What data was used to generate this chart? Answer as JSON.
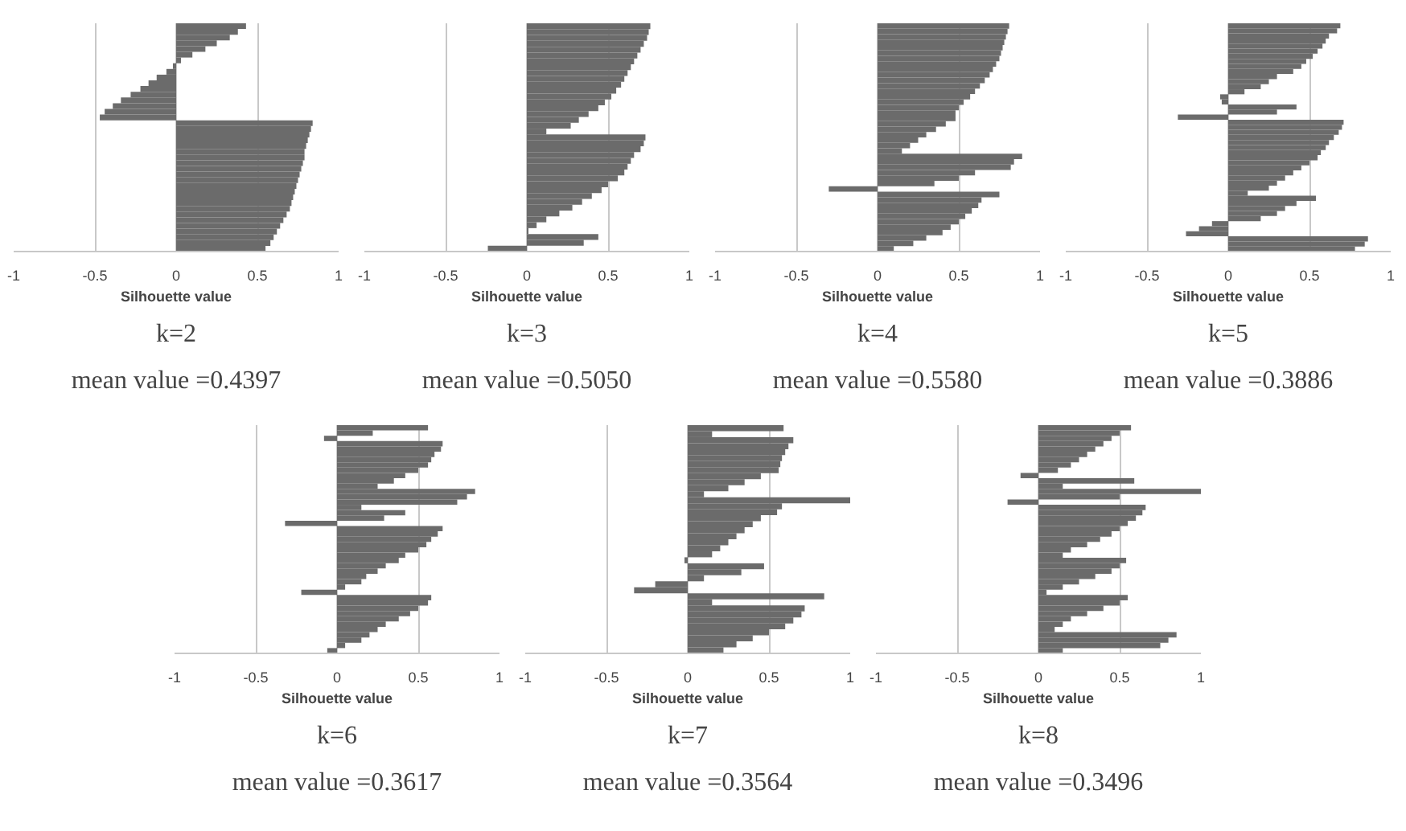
{
  "chart_data": [
    {
      "type": "bar",
      "orientation": "horizontal",
      "title": "k=2",
      "subtitle": "mean value =0.4397",
      "xlabel": "Silhouette value",
      "xlim": [
        -1,
        1
      ],
      "xticks": [
        -1,
        -0.5,
        0,
        0.5,
        1
      ],
      "grid": "x",
      "tick_labels": "x",
      "color": "#6b6b6b",
      "categories": [
        null,
        null,
        null,
        null,
        null,
        null,
        null,
        null,
        null,
        null,
        null,
        null,
        null,
        null,
        null,
        null,
        null,
        null,
        null,
        null,
        null,
        null,
        null,
        null,
        null,
        null,
        null,
        null,
        null,
        null,
        null,
        null,
        null,
        null,
        null,
        null,
        null,
        null,
        null,
        null
      ],
      "values": [
        0.43,
        0.38,
        0.33,
        0.25,
        0.18,
        0.1,
        0.03,
        -0.02,
        -0.06,
        -0.12,
        -0.17,
        -0.22,
        -0.28,
        -0.34,
        -0.39,
        -0.44,
        -0.47,
        0.84,
        0.83,
        0.82,
        0.81,
        0.8,
        0.79,
        0.79,
        0.78,
        0.77,
        0.76,
        0.75,
        0.74,
        0.73,
        0.72,
        0.71,
        0.7,
        0.68,
        0.66,
        0.64,
        0.62,
        0.6,
        0.58,
        0.55
      ]
    },
    {
      "type": "bar",
      "orientation": "horizontal",
      "title": "k=3",
      "subtitle": "mean value =0.5050",
      "xlabel": "Silhouette value",
      "xlim": [
        -1,
        1
      ],
      "xticks": [
        -1,
        -0.5,
        0,
        0.5,
        1
      ],
      "grid": "x",
      "tick_labels": "x",
      "color": "#6b6b6b",
      "categories": [
        null,
        null,
        null,
        null,
        null,
        null,
        null,
        null,
        null,
        null,
        null,
        null,
        null,
        null,
        null,
        null,
        null,
        null,
        null,
        null,
        null,
        null,
        null,
        null,
        null,
        null,
        null,
        null,
        null,
        null,
        null,
        null,
        null,
        null,
        null,
        null,
        null,
        null,
        null
      ],
      "values": [
        0.76,
        0.75,
        0.74,
        0.72,
        0.7,
        0.68,
        0.66,
        0.64,
        0.62,
        0.6,
        0.58,
        0.55,
        0.52,
        0.48,
        0.44,
        0.38,
        0.32,
        0.27,
        0.12,
        0.73,
        0.72,
        0.7,
        0.66,
        0.64,
        0.62,
        0.6,
        0.56,
        0.5,
        0.46,
        0.4,
        0.34,
        0.28,
        0.2,
        0.12,
        0.06,
        0.01,
        0.44,
        0.35,
        -0.24
      ]
    },
    {
      "type": "bar",
      "orientation": "horizontal",
      "title": "k=4",
      "subtitle": "mean value =0.5580",
      "xlabel": "Silhouette value",
      "xlim": [
        -1,
        1
      ],
      "xticks": [
        -1,
        -0.5,
        0,
        0.5,
        1
      ],
      "grid": "x",
      "tick_labels": "x",
      "color": "#6b6b6b",
      "categories": [
        null,
        null,
        null,
        null,
        null,
        null,
        null,
        null,
        null,
        null,
        null,
        null,
        null,
        null,
        null,
        null,
        null,
        null,
        null,
        null,
        null,
        null,
        null,
        null,
        null,
        null,
        null,
        null,
        null,
        null,
        null,
        null,
        null,
        null,
        null,
        null,
        null,
        null,
        null,
        null,
        null,
        null
      ],
      "values": [
        0.81,
        0.8,
        0.79,
        0.78,
        0.77,
        0.76,
        0.75,
        0.73,
        0.71,
        0.69,
        0.66,
        0.63,
        0.6,
        0.57,
        0.53,
        0.5,
        0.48,
        0.48,
        0.42,
        0.36,
        0.3,
        0.25,
        0.2,
        0.15,
        0.89,
        0.84,
        0.82,
        0.6,
        0.5,
        0.35,
        -0.3,
        0.75,
        0.64,
        0.62,
        0.58,
        0.54,
        0.5,
        0.45,
        0.4,
        0.3,
        0.22,
        0.1
      ]
    },
    {
      "type": "bar",
      "orientation": "horizontal",
      "title": "k=5",
      "subtitle": "mean value =0.3886",
      "xlabel": "Silhouette value",
      "xlim": [
        -1,
        1
      ],
      "xticks": [
        -1,
        -0.5,
        0,
        0.5,
        1
      ],
      "grid": "x",
      "tick_labels": "x",
      "color": "#6b6b6b",
      "categories": [
        null,
        null,
        null,
        null,
        null,
        null,
        null,
        null,
        null,
        null,
        null,
        null,
        null,
        null,
        null,
        null,
        null,
        null,
        null,
        null,
        null,
        null,
        null,
        null,
        null,
        null,
        null,
        null,
        null,
        null,
        null,
        null,
        null,
        null,
        null,
        null,
        null,
        null,
        null,
        null,
        null,
        null,
        null,
        null,
        null
      ],
      "values": [
        0.69,
        0.67,
        0.62,
        0.6,
        0.58,
        0.55,
        0.52,
        0.48,
        0.45,
        0.4,
        0.3,
        0.25,
        0.2,
        0.1,
        -0.05,
        -0.04,
        0.42,
        0.3,
        -0.31,
        0.71,
        0.7,
        0.68,
        0.65,
        0.62,
        0.6,
        0.57,
        0.55,
        0.5,
        0.45,
        0.4,
        0.35,
        0.3,
        0.25,
        0.12,
        0.54,
        0.42,
        0.35,
        0.3,
        0.2,
        -0.1,
        -0.18,
        -0.26,
        0.86,
        0.84,
        0.78
      ]
    },
    {
      "type": "bar",
      "orientation": "horizontal",
      "title": "k=6",
      "subtitle": "mean value =0.3617",
      "xlabel": "Silhouette value",
      "xlim": [
        -1,
        1
      ],
      "xticks": [
        -1,
        -0.5,
        0,
        0.5,
        1
      ],
      "grid": "x",
      "tick_labels": "x",
      "color": "#6b6b6b",
      "categories": [
        null,
        null,
        null,
        null,
        null,
        null,
        null,
        null,
        null,
        null,
        null,
        null,
        null,
        null,
        null,
        null,
        null,
        null,
        null,
        null,
        null,
        null,
        null,
        null,
        null,
        null,
        null,
        null,
        null,
        null,
        null,
        null,
        null,
        null,
        null,
        null,
        null,
        null,
        null,
        null,
        null,
        null,
        null
      ],
      "values": [
        0.56,
        0.22,
        -0.08,
        0.65,
        0.64,
        0.6,
        0.58,
        0.56,
        0.5,
        0.42,
        0.35,
        0.25,
        0.85,
        0.8,
        0.74,
        0.15,
        0.42,
        0.29,
        -0.32,
        0.65,
        0.62,
        0.58,
        0.55,
        0.5,
        0.42,
        0.38,
        0.3,
        0.25,
        0.18,
        0.15,
        0.05,
        -0.22,
        0.58,
        0.56,
        0.5,
        0.45,
        0.38,
        0.3,
        0.25,
        0.2,
        0.15,
        0.05,
        -0.06
      ]
    },
    {
      "type": "bar",
      "orientation": "horizontal",
      "title": "k=7",
      "subtitle": "mean value =0.3564",
      "xlabel": "Silhouette value",
      "xlim": [
        -1,
        1
      ],
      "xticks": [
        -1,
        -0.5,
        0,
        0.5,
        1
      ],
      "grid": "x",
      "tick_labels": "x",
      "color": "#6b6b6b",
      "categories": [
        null,
        null,
        null,
        null,
        null,
        null,
        null,
        null,
        null,
        null,
        null,
        null,
        null,
        null,
        null,
        null,
        null,
        null,
        null,
        null,
        null,
        null,
        null,
        null,
        null,
        null,
        null,
        null,
        null,
        null,
        null,
        null,
        null,
        null,
        null,
        null,
        null,
        null
      ],
      "values": [
        0.59,
        0.15,
        0.65,
        0.62,
        0.6,
        0.58,
        0.57,
        0.56,
        0.45,
        0.35,
        0.25,
        0.1,
        1.0,
        0.58,
        0.55,
        0.45,
        0.4,
        0.35,
        0.3,
        0.25,
        0.2,
        0.15,
        -0.02,
        0.47,
        0.33,
        0.1,
        -0.2,
        -0.33,
        0.84,
        0.15,
        0.72,
        0.7,
        0.65,
        0.6,
        0.5,
        0.4,
        0.3,
        0.22
      ]
    },
    {
      "type": "bar",
      "orientation": "horizontal",
      "title": "k=8",
      "subtitle": "mean value =0.3496",
      "xlabel": "Silhouette value",
      "xlim": [
        -1,
        1
      ],
      "xticks": [
        -1,
        -0.5,
        0,
        0.5,
        1
      ],
      "grid": "x",
      "tick_labels": "x",
      "color": "#6b6b6b",
      "categories": [
        null,
        null,
        null,
        null,
        null,
        null,
        null,
        null,
        null,
        null,
        null,
        null,
        null,
        null,
        null,
        null,
        null,
        null,
        null,
        null,
        null,
        null,
        null,
        null,
        null,
        null,
        null,
        null,
        null,
        null,
        null,
        null,
        null,
        null,
        null,
        null,
        null,
        null,
        null,
        null,
        null,
        null,
        null
      ],
      "values": [
        0.57,
        0.5,
        0.45,
        0.4,
        0.35,
        0.3,
        0.25,
        0.2,
        0.12,
        -0.11,
        0.59,
        0.15,
        1.0,
        0.5,
        -0.19,
        0.66,
        0.64,
        0.6,
        0.55,
        0.5,
        0.45,
        0.38,
        0.3,
        0.2,
        0.15,
        0.54,
        0.5,
        0.45,
        0.35,
        0.25,
        0.15,
        0.05,
        0.55,
        0.5,
        0.4,
        0.3,
        0.2,
        0.15,
        0.1,
        0.85,
        0.8,
        0.75,
        0.15
      ]
    }
  ]
}
